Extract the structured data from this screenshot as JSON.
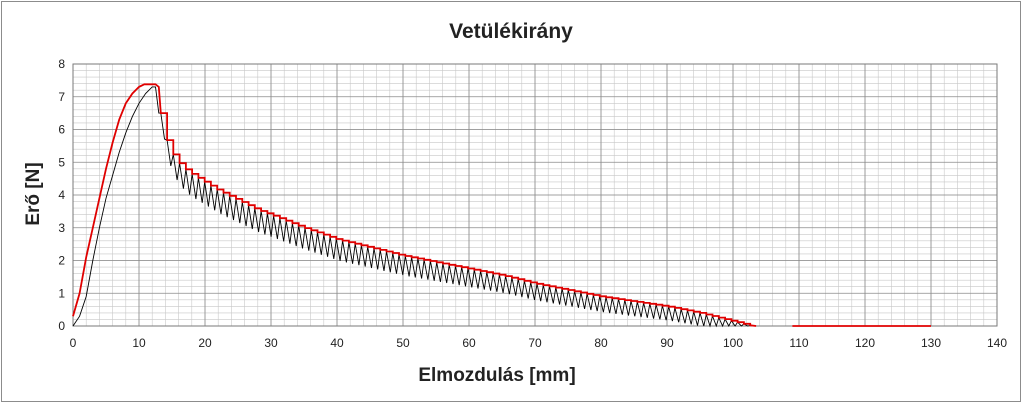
{
  "chart_data": {
    "type": "line",
    "title": "Vetülékirány",
    "xlabel": "Elmozdulás [mm]",
    "ylabel": "Erő [N]",
    "xlim": [
      0,
      140
    ],
    "ylim": [
      0,
      8
    ],
    "xticks": [
      0,
      10,
      20,
      30,
      40,
      50,
      60,
      70,
      80,
      90,
      100,
      110,
      120,
      130,
      140
    ],
    "yticks": [
      0,
      1,
      2,
      3,
      4,
      5,
      6,
      7,
      8
    ],
    "grid": true,
    "legend": "none",
    "series": [
      {
        "color": "#e00000",
        "style": "upper envelope (stepped)",
        "x": [
          0,
          1,
          2,
          3,
          4,
          5,
          6,
          7,
          8,
          9,
          10,
          10.8,
          11.5,
          12.5,
          13,
          13.3,
          14,
          15,
          16,
          17,
          18,
          20,
          22,
          24,
          26,
          28,
          30,
          35,
          40,
          45,
          50,
          55,
          60,
          65,
          70,
          75,
          80,
          85,
          90,
          95,
          98,
          100,
          102,
          103,
          103.5,
          109,
          130
        ],
        "y": [
          0.3,
          1.0,
          2.1,
          3.0,
          3.9,
          4.8,
          5.6,
          6.3,
          6.8,
          7.1,
          7.3,
          7.38,
          7.38,
          7.38,
          7.3,
          6.5,
          5.8,
          5.3,
          5.0,
          4.8,
          4.65,
          4.4,
          4.15,
          3.95,
          3.75,
          3.55,
          3.4,
          3.0,
          2.65,
          2.4,
          2.15,
          1.95,
          1.75,
          1.55,
          1.3,
          1.1,
          0.9,
          0.75,
          0.6,
          0.4,
          0.25,
          0.15,
          0.05,
          0.0,
          0.0,
          0.0,
          0.0
        ]
      },
      {
        "color": "#000000",
        "style": "measured (oscillating)",
        "x": [
          0,
          1,
          2,
          3,
          4,
          5,
          6,
          7,
          8,
          9,
          10,
          11,
          12,
          12.5,
          13,
          103
        ],
        "y": [
          0.0,
          0.3,
          0.9,
          2.0,
          3.0,
          3.9,
          4.6,
          5.3,
          5.9,
          6.4,
          6.8,
          7.1,
          7.3,
          7.3,
          6.5,
          0.0
        ]
      }
    ]
  }
}
